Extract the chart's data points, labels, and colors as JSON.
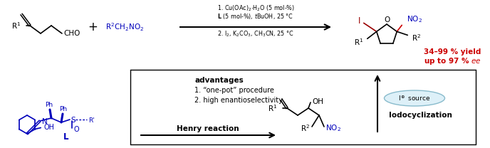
{
  "bg_color": "#ffffff",
  "black": "#000000",
  "blue": "#0000bb",
  "red": "#cc0000",
  "iodo_red": "#990000",
  "figsize": [
    6.88,
    2.08
  ],
  "dpi": 100,
  "cond1": "1. Cu(OAc)$_2$$\\cdot$H$_2$O (5 mol-%)",
  "cond2": "$\\mathbf{L}$ (5 mol-%), $t$BuOH, 25 °C",
  "cond3": "2. I$_2$, K$_2$CO$_3$, CH$_3$CN, 25 °C",
  "yield1": "34–99 % yield",
  "yield2": "up to 97 % $ee$",
  "adv_title": "advantages",
  "adv1": "1. “one-pot” procedure",
  "adv2": "2. high enantioselectivity",
  "henry": "Henry reaction",
  "iodo": "Iodocyclization",
  "isource": "I$^\\oplus$ source"
}
